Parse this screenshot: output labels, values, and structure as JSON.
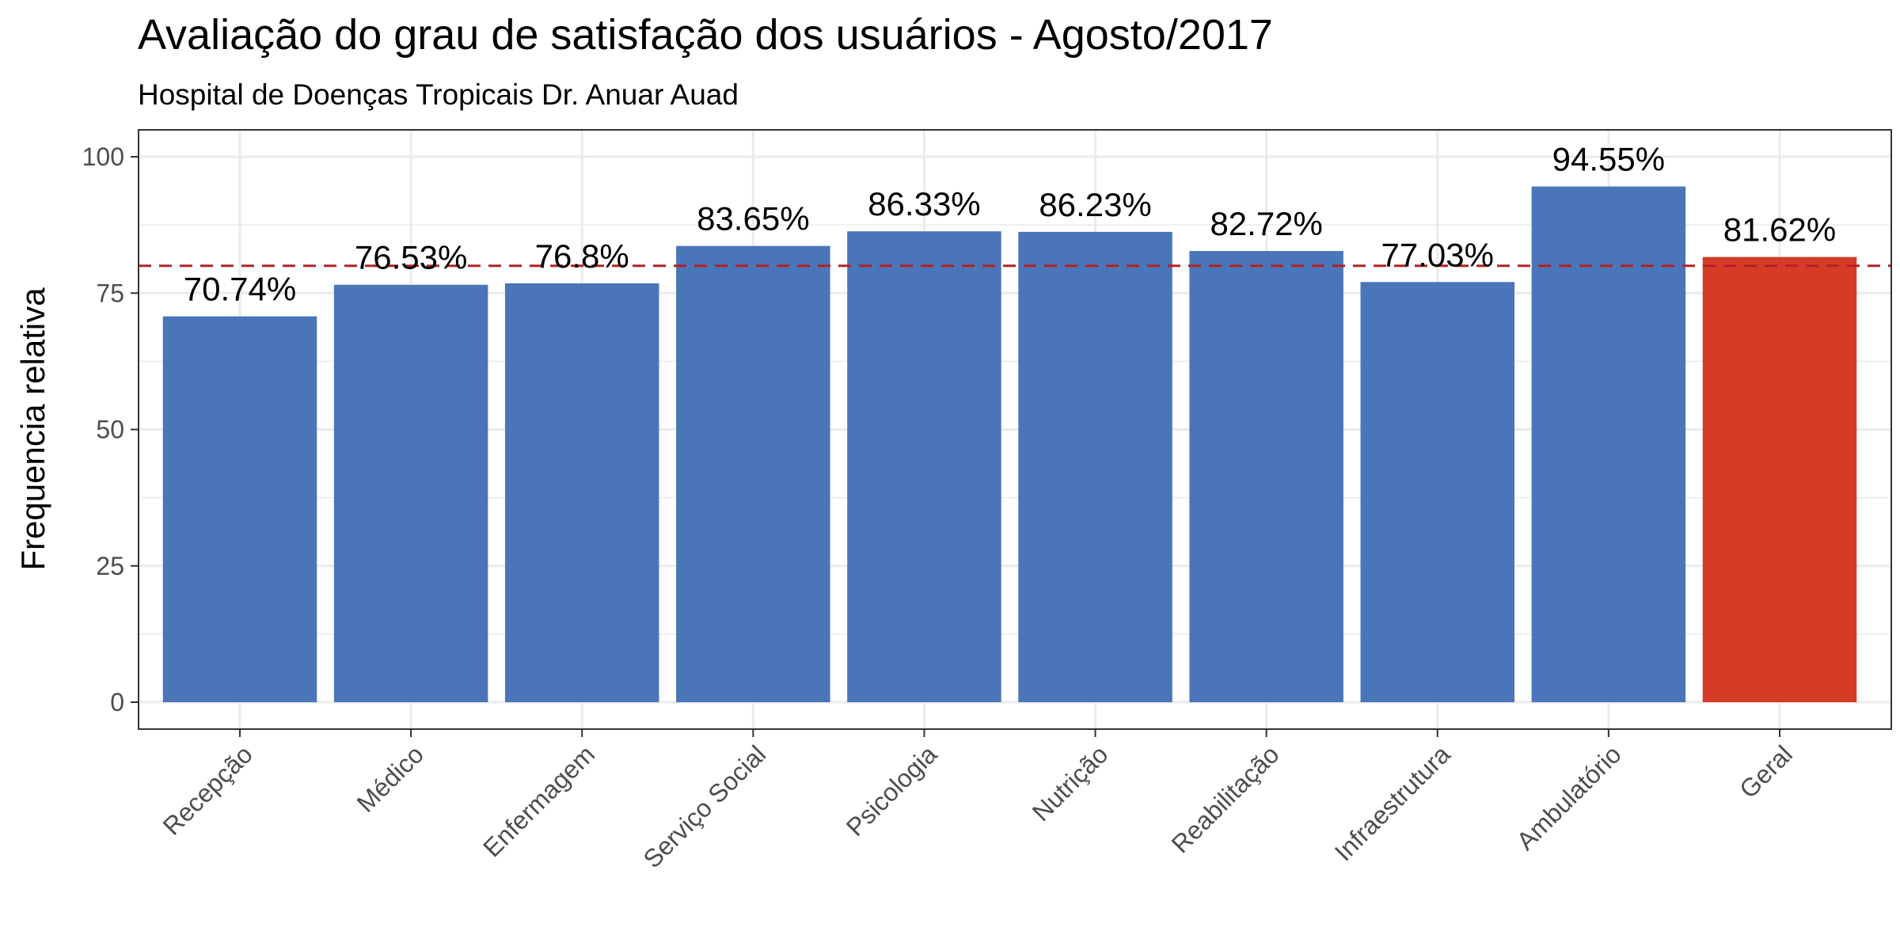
{
  "chart_data": {
    "type": "bar",
    "title": "Avaliação do grau de satisfação dos usuários - Agosto/2017",
    "subtitle": "Hospital de Doenças Tropicais Dr. Anuar Auad",
    "xlabel": "",
    "ylabel": "Frequencia relativa",
    "categories": [
      "Recepção",
      "Médico",
      "Enfermagem",
      "Serviço Social",
      "Psicologia",
      "Nutrição",
      "Reabilitação",
      "Infraestrutura",
      "Ambulatório",
      "Geral"
    ],
    "values": [
      70.74,
      76.53,
      76.8,
      83.65,
      86.33,
      86.23,
      82.72,
      77.03,
      94.55,
      81.62
    ],
    "data_labels": [
      "70.74%",
      "76.53%",
      "76.8%",
      "83.65%",
      "86.33%",
      "86.23%",
      "82.72%",
      "77.03%",
      "94.55%",
      "81.62%"
    ],
    "ylim": [
      0,
      100
    ],
    "yticks": [
      0,
      25,
      50,
      75,
      100
    ],
    "grid": true,
    "reference_line": 80,
    "colors": {
      "bar": "#4a76b9",
      "highlight_bar": "#d63b27",
      "reference_line": "#b22222",
      "grid": "#ebebeb",
      "panel_border": "#333333"
    },
    "highlight_categories": [
      "Geral"
    ]
  }
}
